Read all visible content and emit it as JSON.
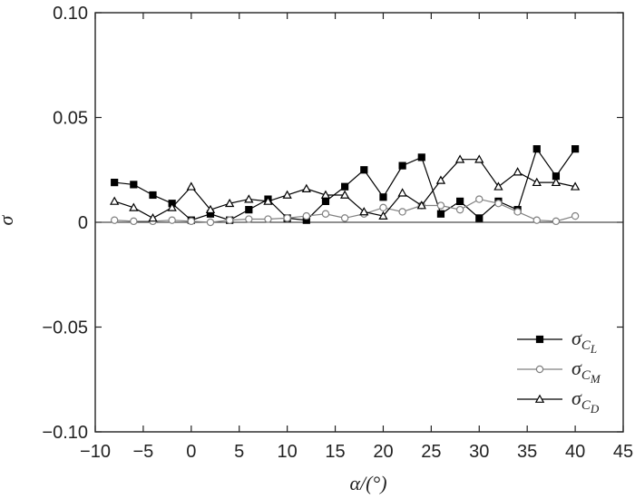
{
  "chart_data": {
    "type": "line",
    "title": "",
    "xlabel": "α/(°)",
    "ylabel": "σ",
    "xlim": [
      -10,
      45
    ],
    "ylim": [
      -0.1,
      0.1
    ],
    "x_ticks": [
      -10,
      -5,
      0,
      5,
      10,
      15,
      20,
      25,
      30,
      35,
      40,
      45
    ],
    "y_ticks": [
      -0.1,
      -0.05,
      0,
      0.05,
      0.1
    ],
    "x_tick_labels": [
      "−10",
      "−5",
      "0",
      "5",
      "10",
      "15",
      "20",
      "25",
      "30",
      "35",
      "40",
      "45"
    ],
    "y_tick_labels": [
      "−0.10",
      "−0.05",
      "0",
      "0.05",
      "0.10"
    ],
    "grid": false,
    "legend_position": "bottom-right",
    "x": [
      -8,
      -6,
      -4,
      -2,
      0,
      2,
      4,
      6,
      8,
      10,
      12,
      14,
      16,
      18,
      20,
      22,
      24,
      26,
      28,
      30,
      32,
      34,
      36,
      38,
      40
    ],
    "series": [
      {
        "name": "σ",
        "subscript": "C",
        "subsub": "L",
        "marker": "filled-square",
        "color": "#000000",
        "values": [
          0.019,
          0.018,
          0.013,
          0.009,
          0.001,
          0.004,
          0.001,
          0.006,
          0.011,
          0.002,
          0.001,
          0.01,
          0.017,
          0.025,
          0.012,
          0.027,
          0.031,
          0.004,
          0.01,
          0.002,
          0.01,
          0.006,
          0.035,
          0.022,
          0.035
        ]
      },
      {
        "name": "σ",
        "subscript": "C",
        "subsub": "M",
        "marker": "open-circle",
        "color": "#808080",
        "values": [
          0.001,
          0.0005,
          0.0005,
          0.001,
          0.0005,
          0.0,
          0.001,
          0.0015,
          0.0015,
          0.002,
          0.003,
          0.004,
          0.002,
          0.004,
          0.007,
          0.005,
          0.008,
          0.008,
          0.006,
          0.011,
          0.009,
          0.005,
          0.001,
          0.0005,
          0.003
        ]
      },
      {
        "name": "σ",
        "subscript": "C",
        "subsub": "D",
        "marker": "open-triangle",
        "color": "#000000",
        "values": [
          0.01,
          0.007,
          0.002,
          0.007,
          0.017,
          0.006,
          0.009,
          0.011,
          0.01,
          0.013,
          0.016,
          0.013,
          0.013,
          0.005,
          0.003,
          0.014,
          0.008,
          0.02,
          0.03,
          0.03,
          0.017,
          0.024,
          0.019,
          0.019,
          0.017
        ]
      }
    ]
  }
}
